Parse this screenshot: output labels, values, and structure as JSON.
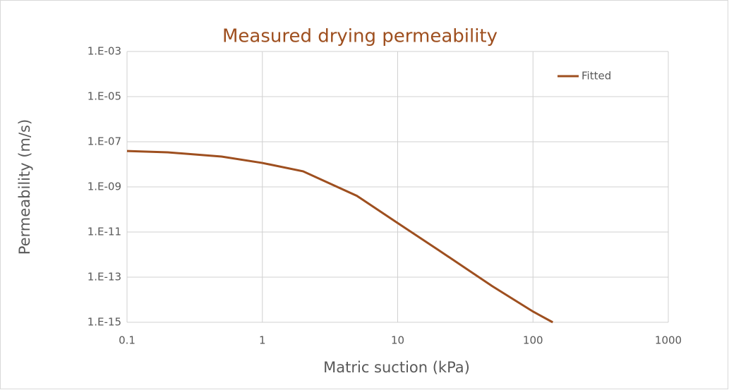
{
  "chart_data": {
    "type": "line",
    "title": "Measured drying permeability",
    "x_label": "Matric suction (kPa)",
    "y_label": "Permeability (m/s)",
    "x": [
      0.1,
      0.2,
      0.5,
      1,
      2,
      5,
      10,
      20,
      50,
      100,
      140
    ],
    "series": [
      {
        "name": "Fitted",
        "color": "#9E4F1F",
        "values": [
          3.9e-08,
          3.4e-08,
          2.2e-08,
          1.15e-08,
          4.9e-09,
          4e-10,
          2.5e-11,
          1.6e-12,
          4e-14,
          3e-15,
          1e-15
        ]
      }
    ],
    "xlim": [
      0.1,
      1000
    ],
    "xticks": [
      0.1,
      1,
      10,
      100,
      1000
    ],
    "ylim": [
      1e-15,
      0.001
    ],
    "yticks": [
      {
        "value": 1e-15,
        "label": "1.E-15"
      },
      {
        "value": 1e-13,
        "label": "1.E-13"
      },
      {
        "value": 1e-11,
        "label": "1.E-11"
      },
      {
        "value": 1e-09,
        "label": "1.E-09"
      },
      {
        "value": 1e-07,
        "label": "1.E-07"
      },
      {
        "value": 1e-05,
        "label": "1.E-05"
      },
      {
        "value": 0.001,
        "label": "1.E-03"
      }
    ],
    "xscale": "log",
    "yscale": "log",
    "grid": true,
    "legend": "top-right"
  }
}
